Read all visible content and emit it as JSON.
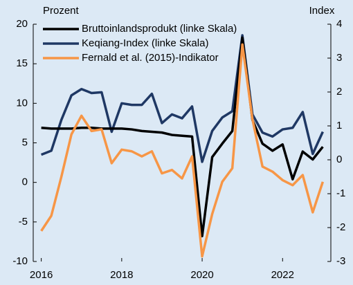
{
  "chart_data": {
    "type": "line",
    "y_label": "Prozent",
    "y2_label": "Index",
    "x": [
      2016,
      2016.25,
      2016.5,
      2016.75,
      2017,
      2017.25,
      2017.5,
      2017.75,
      2018,
      2018.25,
      2018.5,
      2018.75,
      2019,
      2019.25,
      2019.5,
      2019.75,
      2020,
      2020.25,
      2020.5,
      2020.75,
      2021,
      2021.25,
      2021.5,
      2021.75,
      2022,
      2022.25,
      2022.5,
      2022.75,
      2023
    ],
    "xlim": [
      2015.8,
      2023.2
    ],
    "xticks": [
      2016,
      2018,
      2020,
      2022
    ],
    "ylim": [
      -10,
      20
    ],
    "yticks": [
      -10,
      -5,
      0,
      5,
      10,
      15,
      20
    ],
    "y2lim": [
      -3,
      4
    ],
    "y2ticks": [
      -3,
      -2,
      -1,
      0,
      1,
      2,
      3,
      4
    ],
    "legend": "upper left",
    "series": [
      {
        "name": "Bruttoinlandsprodukt (linke Skala)",
        "color": "#000000",
        "values": [
          6.9,
          6.8,
          6.8,
          6.8,
          6.9,
          6.9,
          6.8,
          6.8,
          6.8,
          6.7,
          6.5,
          6.4,
          6.3,
          6.0,
          5.9,
          5.8,
          -6.8,
          3.2,
          4.9,
          6.5,
          18.3,
          7.9,
          4.9,
          4.0,
          4.8,
          0.4,
          3.9,
          2.9,
          4.5
        ]
      },
      {
        "name": "Keqiang-Index (linke Skala)",
        "color": "#1f3864",
        "values": [
          3.5,
          4.0,
          7.9,
          11.0,
          11.8,
          11.3,
          11.4,
          6.4,
          10.0,
          9.8,
          9.8,
          11.2,
          7.5,
          8.6,
          8.1,
          9.6,
          2.6,
          6.5,
          8.2,
          9.0,
          18.6,
          8.6,
          6.3,
          5.8,
          6.7,
          6.9,
          8.9,
          3.6,
          6.4
        ]
      },
      {
        "name": "Fernald et al. (2015)-Indikator",
        "color": "#f79646",
        "axis": "y2",
        "values": [
          -2.1,
          -1.65,
          -0.5,
          0.75,
          1.3,
          0.85,
          0.9,
          -0.1,
          0.3,
          0.25,
          0.1,
          0.25,
          -0.4,
          -0.3,
          -0.55,
          0.1,
          -2.85,
          -1.6,
          -0.65,
          -0.25,
          3.4,
          1.2,
          -0.2,
          -0.35,
          -0.6,
          -0.75,
          -0.45,
          -1.55,
          -0.65
        ]
      }
    ]
  }
}
